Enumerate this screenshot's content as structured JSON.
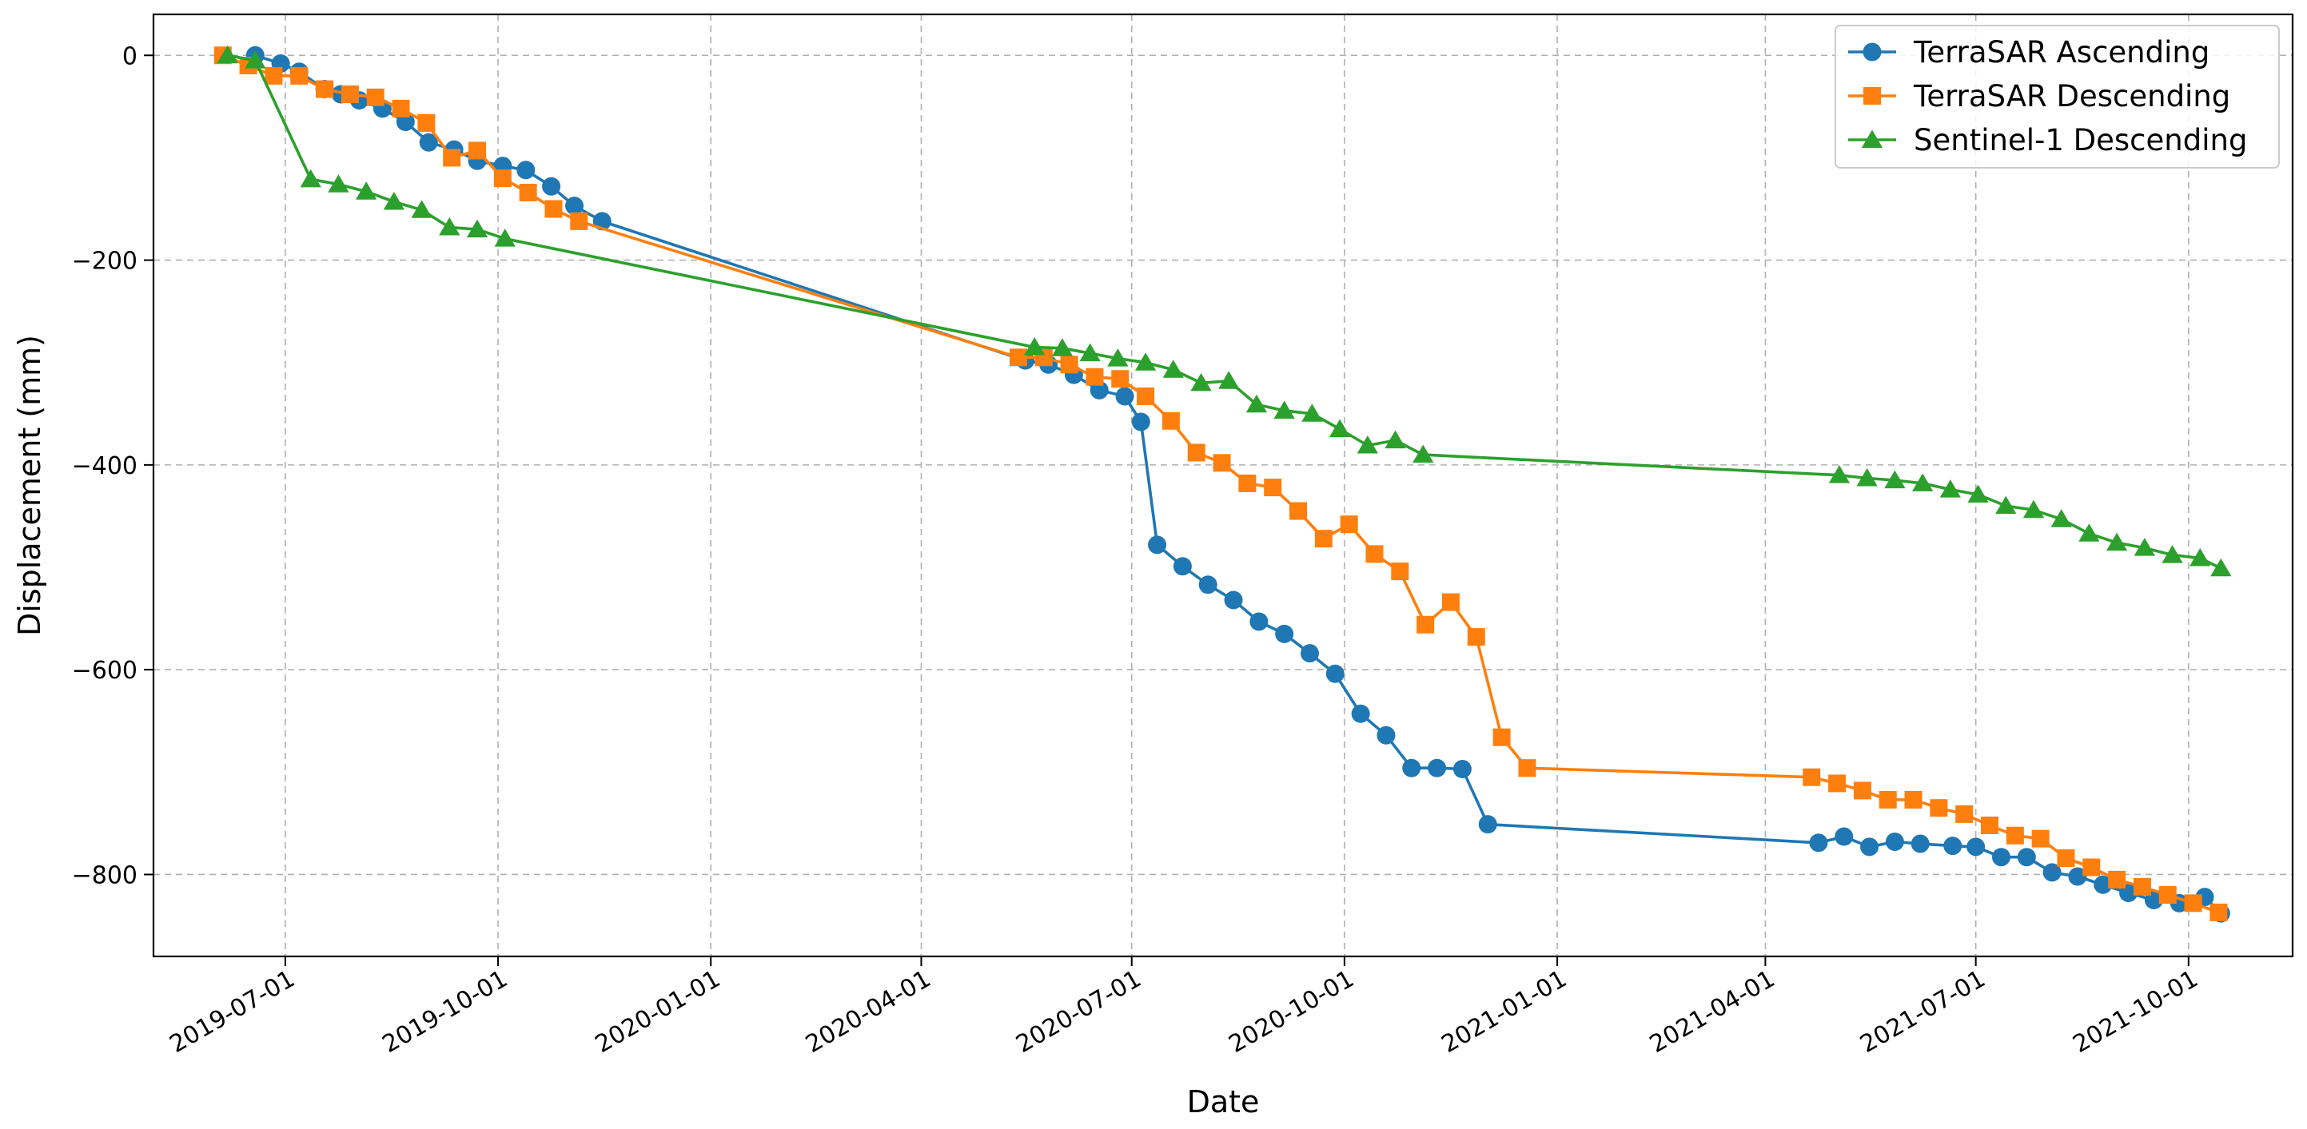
{
  "chart_data": {
    "type": "line",
    "title": "",
    "xlabel": "Date",
    "ylabel": "Displacement (mm)",
    "x_type": "date",
    "xlim": [
      "2019-05-05",
      "2021-11-15"
    ],
    "ylim": [
      -880,
      40
    ],
    "x_ticks": [
      "2019-07-01",
      "2019-10-01",
      "2020-01-01",
      "2020-04-01",
      "2020-07-01",
      "2020-10-01",
      "2021-01-01",
      "2021-04-01",
      "2021-07-01",
      "2021-10-01"
    ],
    "y_ticks": [
      0,
      -200,
      -400,
      -600,
      -800
    ],
    "grid": true,
    "legend_position": "top-right",
    "series": [
      {
        "name": "TerraSAR Ascending",
        "color": "#1f77b4",
        "marker": "circle",
        "points": [
          [
            "2019-06-18",
            0
          ],
          [
            "2019-06-29",
            -8
          ],
          [
            "2019-07-07",
            -16
          ],
          [
            "2019-07-18",
            -33
          ],
          [
            "2019-07-25",
            -38
          ],
          [
            "2019-08-02",
            -44
          ],
          [
            "2019-08-12",
            -52
          ],
          [
            "2019-08-22",
            -65
          ],
          [
            "2019-09-01",
            -85
          ],
          [
            "2019-09-12",
            -92
          ],
          [
            "2019-09-22",
            -103
          ],
          [
            "2019-10-03",
            -108
          ],
          [
            "2019-10-13",
            -112
          ],
          [
            "2019-10-24",
            -128
          ],
          [
            "2019-11-03",
            -147
          ],
          [
            "2019-11-15",
            -162
          ],
          [
            "2020-05-16",
            -298
          ],
          [
            "2020-05-26",
            -302
          ],
          [
            "2020-06-06",
            -312
          ],
          [
            "2020-06-17",
            -327
          ],
          [
            "2020-06-28",
            -333
          ],
          [
            "2020-07-05",
            -358
          ],
          [
            "2020-07-12",
            -478
          ],
          [
            "2020-07-23",
            -499
          ],
          [
            "2020-08-03",
            -517
          ],
          [
            "2020-08-14",
            -532
          ],
          [
            "2020-08-25",
            -553
          ],
          [
            "2020-09-05",
            -565
          ],
          [
            "2020-09-16",
            -584
          ],
          [
            "2020-09-27",
            -604
          ],
          [
            "2020-10-08",
            -643
          ],
          [
            "2020-10-19",
            -664
          ],
          [
            "2020-10-30",
            -696
          ],
          [
            "2020-11-10",
            -696
          ],
          [
            "2020-11-21",
            -697
          ],
          [
            "2020-12-02",
            -751
          ],
          [
            "2021-04-24",
            -769
          ],
          [
            "2021-05-05",
            -763
          ],
          [
            "2021-05-16",
            -773
          ],
          [
            "2021-05-27",
            -768
          ],
          [
            "2021-06-07",
            -770
          ],
          [
            "2021-06-21",
            -772
          ],
          [
            "2021-07-01",
            -773
          ],
          [
            "2021-07-12",
            -783
          ],
          [
            "2021-07-23",
            -783
          ],
          [
            "2021-08-03",
            -798
          ],
          [
            "2021-08-14",
            -802
          ],
          [
            "2021-08-25",
            -810
          ],
          [
            "2021-09-05",
            -818
          ],
          [
            "2021-09-16",
            -825
          ],
          [
            "2021-09-27",
            -828
          ],
          [
            "2021-10-08",
            -822
          ],
          [
            "2021-10-15",
            -838
          ]
        ]
      },
      {
        "name": "TerraSAR Descending",
        "color": "#ff7f0e",
        "marker": "square",
        "points": [
          [
            "2019-06-04",
            0
          ],
          [
            "2019-06-15",
            -10
          ],
          [
            "2019-06-26",
            -20
          ],
          [
            "2019-07-07",
            -20
          ],
          [
            "2019-07-18",
            -33
          ],
          [
            "2019-07-29",
            -38
          ],
          [
            "2019-08-09",
            -41
          ],
          [
            "2019-08-20",
            -52
          ],
          [
            "2019-08-31",
            -66
          ],
          [
            "2019-09-11",
            -100
          ],
          [
            "2019-09-22",
            -93
          ],
          [
            "2019-10-03",
            -120
          ],
          [
            "2019-10-14",
            -134
          ],
          [
            "2019-10-25",
            -150
          ],
          [
            "2019-11-05",
            -162
          ],
          [
            "2020-05-13",
            -295
          ],
          [
            "2020-05-24",
            -295
          ],
          [
            "2020-06-04",
            -302
          ],
          [
            "2020-06-15",
            -314
          ],
          [
            "2020-06-26",
            -316
          ],
          [
            "2020-07-07",
            -333
          ],
          [
            "2020-07-18",
            -357
          ],
          [
            "2020-07-29",
            -388
          ],
          [
            "2020-08-09",
            -398
          ],
          [
            "2020-08-20",
            -418
          ],
          [
            "2020-08-31",
            -422
          ],
          [
            "2020-09-11",
            -445
          ],
          [
            "2020-09-22",
            -472
          ],
          [
            "2020-10-03",
            -458
          ],
          [
            "2020-10-14",
            -487
          ],
          [
            "2020-10-25",
            -504
          ],
          [
            "2020-11-05",
            -556
          ],
          [
            "2020-11-16",
            -534
          ],
          [
            "2020-11-27",
            -568
          ],
          [
            "2020-12-08",
            -666
          ],
          [
            "2020-12-19",
            -696
          ],
          [
            "2021-04-21",
            -705
          ],
          [
            "2021-05-02",
            -711
          ],
          [
            "2021-05-13",
            -718
          ],
          [
            "2021-05-24",
            -727
          ],
          [
            "2021-06-04",
            -727
          ],
          [
            "2021-06-15",
            -735
          ],
          [
            "2021-06-26",
            -741
          ],
          [
            "2021-07-07",
            -752
          ],
          [
            "2021-07-18",
            -762
          ],
          [
            "2021-07-29",
            -765
          ],
          [
            "2021-08-09",
            -784
          ],
          [
            "2021-08-20",
            -793
          ],
          [
            "2021-08-31",
            -805
          ],
          [
            "2021-09-11",
            -812
          ],
          [
            "2021-09-22",
            -820
          ],
          [
            "2021-10-03",
            -828
          ],
          [
            "2021-10-14",
            -837
          ]
        ]
      },
      {
        "name": "Sentinel-1 Descending",
        "color": "#2ca02c",
        "marker": "triangle",
        "points": [
          [
            "2019-06-06",
            0
          ],
          [
            "2019-06-18",
            -5
          ],
          [
            "2019-07-12",
            -121
          ],
          [
            "2019-07-24",
            -126
          ],
          [
            "2019-08-05",
            -133
          ],
          [
            "2019-08-17",
            -143
          ],
          [
            "2019-08-29",
            -151
          ],
          [
            "2019-09-10",
            -168
          ],
          [
            "2019-09-22",
            -170
          ],
          [
            "2019-10-04",
            -179
          ],
          [
            "2020-05-20",
            -285
          ],
          [
            "2020-06-01",
            -286
          ],
          [
            "2020-06-13",
            -291
          ],
          [
            "2020-06-25",
            -296
          ],
          [
            "2020-07-07",
            -300
          ],
          [
            "2020-07-19",
            -307
          ],
          [
            "2020-07-31",
            -320
          ],
          [
            "2020-08-12",
            -318
          ],
          [
            "2020-08-24",
            -341
          ],
          [
            "2020-09-05",
            -347
          ],
          [
            "2020-09-17",
            -350
          ],
          [
            "2020-09-29",
            -365
          ],
          [
            "2020-10-11",
            -381
          ],
          [
            "2020-10-23",
            -376
          ],
          [
            "2020-11-04",
            -390
          ],
          [
            "2021-05-03",
            -410
          ],
          [
            "2021-05-15",
            -413
          ],
          [
            "2021-05-27",
            -415
          ],
          [
            "2021-06-08",
            -418
          ],
          [
            "2021-06-20",
            -424
          ],
          [
            "2021-07-02",
            -429
          ],
          [
            "2021-07-14",
            -440
          ],
          [
            "2021-07-26",
            -444
          ],
          [
            "2021-08-07",
            -453
          ],
          [
            "2021-08-19",
            -467
          ],
          [
            "2021-08-31",
            -476
          ],
          [
            "2021-09-12",
            -481
          ],
          [
            "2021-09-24",
            -488
          ],
          [
            "2021-10-06",
            -491
          ],
          [
            "2021-10-15",
            -501
          ]
        ]
      }
    ]
  }
}
